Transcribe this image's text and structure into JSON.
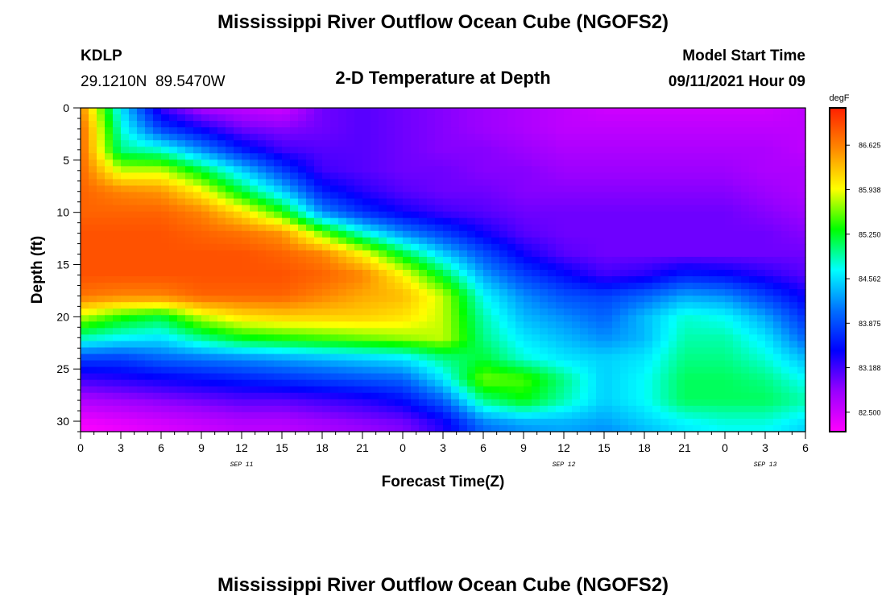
{
  "page": {
    "title_top": "Mississippi River Outflow Ocean Cube (NGOFS2)",
    "title_bottom": "Mississippi River Outflow Ocean Cube (NGOFS2)",
    "station": {
      "id": "KDLP",
      "coords": "29.1210N  89.5470W"
    },
    "subtitle": "2-D Temperature at Depth",
    "model_start": {
      "label": "Model Start Time",
      "value": "09/11/2021 Hour 09"
    }
  },
  "chart_data": {
    "type": "heatmap",
    "xlabel": "Forecast Time(Z)",
    "ylabel": "Depth (ft)",
    "x_tick_labels": [
      "0",
      "3",
      "6",
      "9",
      "12",
      "15",
      "18",
      "21",
      "0",
      "3",
      "6",
      "9",
      "12",
      "15",
      "18",
      "21",
      "0",
      "3",
      "6"
    ],
    "x_date_labels": [
      {
        "text": "SEP 11",
        "hour": 12
      },
      {
        "text": "SEP 12",
        "hour": 36
      },
      {
        "text": "SEP 13",
        "hour": 51
      }
    ],
    "xlim": [
      0,
      54
    ],
    "ylim": [
      0,
      31
    ],
    "y_ticks": [
      0,
      5,
      10,
      15,
      20,
      25,
      30
    ],
    "y_reversed": true,
    "colorbar": {
      "unit": "degF",
      "range": [
        82.2,
        87.2
      ],
      "tick_values": [
        "86.625",
        "85.938",
        "85.250",
        "84.562",
        "83.875",
        "83.188",
        "82.500"
      ],
      "colors": [
        "#ff00ff",
        "#9900ff",
        "#0000ff",
        "#0070ff",
        "#00ffff",
        "#00ff00",
        "#ffff00",
        "#ff8800",
        "#ff2000"
      ]
    },
    "grid": false,
    "hours": [
      0,
      3,
      6,
      9,
      12,
      15,
      18,
      21,
      24,
      27,
      30,
      33,
      36,
      39,
      42,
      45,
      48,
      51,
      54
    ],
    "depths": [
      0,
      2,
      4,
      6,
      8,
      10,
      12,
      14,
      16,
      18,
      20,
      22,
      24,
      26,
      28,
      30,
      31
    ],
    "values": [
      [
        86.6,
        84.6,
        83.2,
        82.7,
        82.6,
        82.5,
        83.0,
        83.1,
        83.0,
        82.9,
        82.8,
        82.7,
        82.6,
        82.5,
        82.5,
        82.5,
        82.5,
        82.5,
        82.6
      ],
      [
        86.8,
        84.8,
        83.8,
        83.4,
        83.0,
        82.9,
        83.0,
        83.1,
        83.0,
        82.9,
        82.8,
        82.7,
        82.6,
        82.6,
        82.6,
        82.6,
        82.6,
        82.6,
        82.6
      ],
      [
        86.8,
        85.0,
        84.8,
        84.2,
        83.6,
        83.2,
        83.1,
        83.1,
        83.0,
        82.9,
        82.9,
        82.8,
        82.7,
        82.7,
        82.7,
        82.7,
        82.7,
        82.7,
        82.6
      ],
      [
        86.8,
        85.8,
        85.8,
        85.2,
        84.5,
        83.8,
        83.2,
        83.1,
        83.0,
        83.0,
        82.9,
        82.9,
        82.8,
        82.8,
        82.8,
        82.8,
        82.8,
        82.7,
        82.7
      ],
      [
        86.8,
        86.6,
        86.5,
        86.0,
        85.2,
        84.5,
        83.6,
        83.3,
        83.1,
        83.0,
        83.0,
        82.9,
        82.9,
        82.9,
        82.9,
        82.9,
        82.9,
        82.8,
        82.7
      ],
      [
        86.8,
        86.8,
        86.8,
        86.6,
        86.1,
        85.4,
        84.2,
        83.7,
        83.4,
        83.2,
        83.1,
        83.0,
        83.0,
        83.0,
        83.0,
        83.0,
        83.0,
        82.9,
        82.8
      ],
      [
        86.9,
        86.9,
        86.9,
        86.8,
        86.7,
        86.5,
        85.6,
        84.8,
        84.2,
        83.8,
        83.4,
        83.1,
        83.0,
        83.0,
        83.0,
        83.0,
        83.0,
        83.0,
        82.9
      ],
      [
        86.9,
        86.9,
        86.9,
        86.9,
        86.9,
        86.8,
        86.6,
        86.0,
        85.2,
        84.5,
        83.9,
        83.4,
        83.1,
        83.0,
        83.0,
        83.0,
        83.0,
        83.0,
        83.0
      ],
      [
        86.9,
        86.9,
        86.9,
        86.9,
        86.9,
        86.9,
        86.8,
        86.6,
        86.0,
        85.2,
        84.3,
        83.8,
        83.5,
        83.2,
        83.3,
        83.6,
        83.5,
        83.3,
        83.1
      ],
      [
        86.7,
        86.6,
        86.6,
        86.8,
        86.8,
        86.8,
        86.6,
        86.4,
        86.3,
        85.8,
        84.7,
        84.2,
        83.9,
        83.8,
        84.0,
        84.3,
        84.2,
        83.8,
        83.4
      ],
      [
        85.8,
        85.4,
        85.2,
        85.8,
        86.1,
        86.2,
        86.2,
        86.2,
        86.1,
        85.8,
        84.9,
        84.4,
        84.2,
        84.0,
        84.4,
        84.8,
        84.7,
        84.3,
        83.7
      ],
      [
        84.9,
        84.7,
        84.6,
        85.0,
        85.3,
        85.4,
        85.5,
        85.6,
        85.7,
        85.8,
        85.0,
        84.6,
        84.4,
        84.2,
        84.4,
        84.9,
        84.9,
        84.6,
        84.0
      ],
      [
        83.8,
        83.8,
        84.0,
        84.1,
        84.2,
        84.3,
        84.4,
        84.5,
        84.6,
        85.0,
        85.2,
        84.8,
        84.6,
        84.5,
        84.6,
        85.0,
        85.0,
        84.8,
        84.4
      ],
      [
        83.2,
        83.3,
        83.4,
        83.5,
        83.6,
        83.7,
        83.8,
        83.9,
        84.0,
        84.6,
        85.6,
        85.5,
        85.0,
        84.5,
        84.7,
        85.1,
        85.1,
        85.0,
        84.7
      ],
      [
        82.7,
        82.8,
        82.9,
        83.0,
        83.1,
        83.1,
        83.2,
        83.3,
        83.5,
        84.0,
        85.0,
        85.3,
        84.9,
        84.5,
        84.7,
        85.1,
        85.1,
        85.1,
        84.9
      ],
      [
        82.3,
        82.4,
        82.5,
        82.6,
        82.7,
        82.7,
        82.8,
        82.9,
        83.0,
        83.4,
        84.2,
        84.4,
        84.4,
        84.3,
        84.5,
        84.7,
        84.8,
        84.8,
        84.6
      ],
      [
        82.2,
        82.3,
        82.4,
        82.5,
        82.6,
        82.6,
        82.7,
        82.8,
        82.9,
        83.3,
        84.0,
        84.2,
        84.3,
        84.2,
        84.4,
        84.6,
        84.7,
        84.7,
        84.5
      ]
    ]
  }
}
